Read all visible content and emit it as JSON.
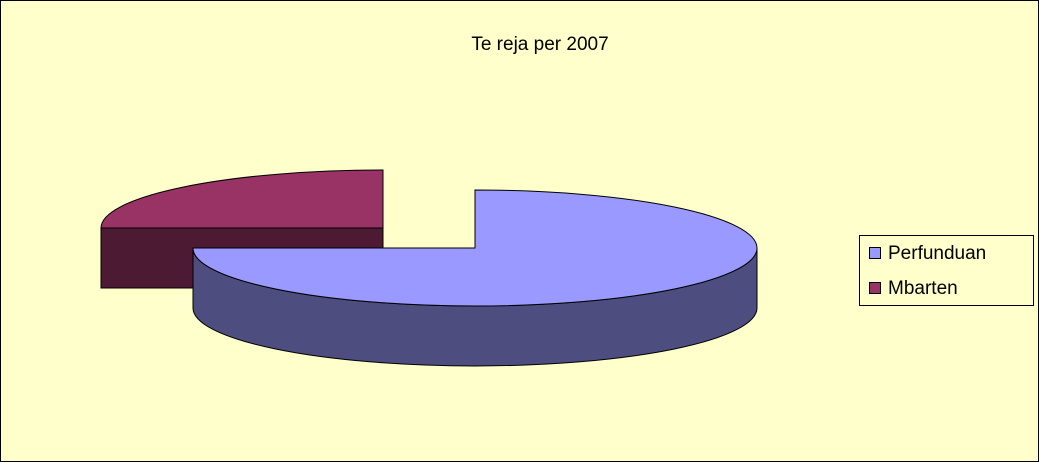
{
  "chart_data": {
    "type": "pie",
    "title": "Te reja per 2007",
    "categories": [
      "Perfunduan",
      "Mbarten"
    ],
    "values": [
      75,
      25
    ],
    "colors": [
      "#9999ff",
      "#993366"
    ],
    "legend": "right"
  }
}
